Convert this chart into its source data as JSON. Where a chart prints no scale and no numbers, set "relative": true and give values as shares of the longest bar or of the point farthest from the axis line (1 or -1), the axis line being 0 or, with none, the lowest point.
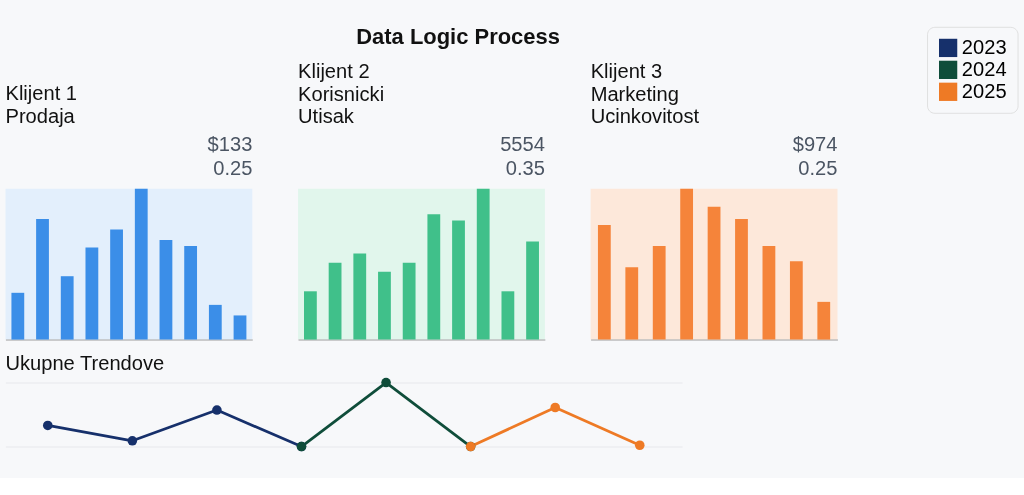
{
  "chart_data": [
    {
      "type": "other",
      "title": "Data Logic Process"
    },
    {
      "type": "bar",
      "relative": true,
      "title": "Klijent 1",
      "subtitle": "Prodaja",
      "annotations": [
        "$133",
        "0.25"
      ],
      "categories": [
        null,
        null,
        null,
        null,
        null,
        null,
        null,
        null,
        null,
        null
      ],
      "series": [
        {
          "color": "#3b8ee8",
          "values": [
            0.31,
            0.8,
            0.42,
            0.61,
            0.73,
            1,
            0.66,
            0.62,
            0.23,
            0.16
          ]
        }
      ]
    },
    {
      "type": "bar",
      "relative": true,
      "title": "Klijent 2",
      "subtitle": "Korisnicki Utisak",
      "annotations": [
        "5554",
        "0.35"
      ],
      "categories": [
        null,
        null,
        null,
        null,
        null,
        null,
        null,
        null,
        null,
        null
      ],
      "series": [
        {
          "color": "#40c08a",
          "values": [
            0.32,
            0.51,
            0.57,
            0.45,
            0.51,
            0.83,
            0.79,
            1,
            0.32,
            0.65
          ]
        }
      ]
    },
    {
      "type": "bar",
      "relative": true,
      "title": "Klijent 3",
      "subtitle": "Marketing Ucinkovitost",
      "annotations": [
        "$974",
        "0.25"
      ],
      "categories": [
        null,
        null,
        null,
        null,
        null,
        null,
        null,
        null,
        null
      ],
      "series": [
        {
          "color": "#f5843a",
          "values": [
            0.76,
            0.48,
            0.62,
            1,
            0.88,
            0.8,
            0.62,
            0.52,
            0.25
          ]
        }
      ]
    },
    {
      "type": "line",
      "relative": true,
      "title": "Ukupne Trendove",
      "marker": "circle",
      "grid": "y",
      "legend": "right",
      "categories": [
        null,
        null,
        null,
        null,
        null,
        null,
        null,
        null
      ],
      "series": [
        {
          "name": "2023",
          "color": "#16306b",
          "values": [
            0.33,
            0.09,
            0.57,
            0,
            null,
            null,
            null,
            null
          ]
        },
        {
          "name": "2024",
          "color": "#0f4d3a",
          "values": [
            null,
            null,
            null,
            0,
            1,
            0,
            null,
            null
          ]
        },
        {
          "name": "2025",
          "color": "#ee7a25",
          "values": [
            null,
            null,
            null,
            null,
            null,
            0,
            0.61,
            0.02
          ]
        }
      ]
    }
  ]
}
